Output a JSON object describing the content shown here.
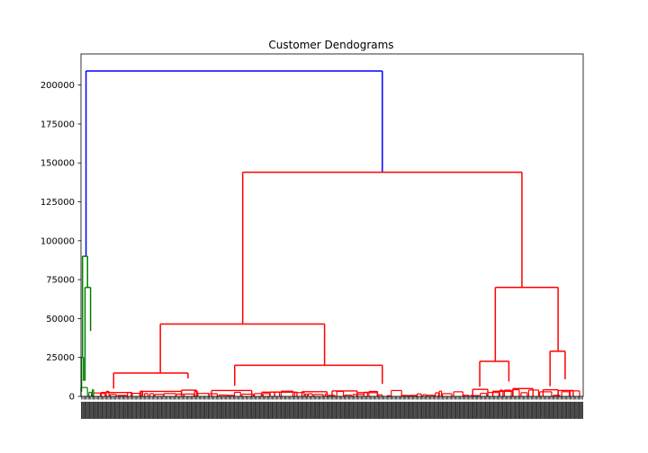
{
  "chart_data": {
    "type": "dendrogram",
    "title": "Customer Dendograms",
    "xlabel": "",
    "ylabel": "",
    "ylim": [
      0,
      220000
    ],
    "yticks": [
      0,
      25000,
      50000,
      75000,
      100000,
      125000,
      150000,
      175000,
      200000
    ],
    "ytick_labels": [
      "0",
      "25000",
      "50000",
      "75000",
      "100000",
      "125000",
      "150000",
      "175000",
      "200000"
    ],
    "grid": false,
    "legend": "none",
    "leaf_count": 440,
    "colors": {
      "root": "#0000ff",
      "cluster_1": "#008000",
      "cluster_2": "#ff0000"
    },
    "merges": [
      {
        "name": "root",
        "color": "root",
        "left": [
          0.01,
          90000
        ],
        "right": [
          0.6,
          144000
        ],
        "height": 209000
      },
      {
        "name": "red-main",
        "color": "cluster_2",
        "left": [
          0.322,
          46500
        ],
        "right": [
          0.878,
          70000
        ],
        "height": 144000
      },
      {
        "name": "red-left",
        "color": "cluster_2",
        "left": [
          0.158,
          15000
        ],
        "right": [
          0.485,
          20000
        ],
        "height": 46500
      },
      {
        "name": "red-right",
        "color": "cluster_2",
        "left": [
          0.825,
          22500
        ],
        "right": [
          0.95,
          29000
        ],
        "height": 70000
      },
      {
        "name": "red-left-a",
        "color": "cluster_2",
        "left": [
          0.065,
          5000
        ],
        "right": [
          0.213,
          11500
        ],
        "height": 15000
      },
      {
        "name": "red-left-b",
        "color": "cluster_2",
        "left": [
          0.306,
          6800
        ],
        "right": [
          0.6,
          8000
        ],
        "height": 20000
      },
      {
        "name": "red-right-a",
        "color": "cluster_2",
        "left": [
          0.794,
          6200
        ],
        "right": [
          0.852,
          9500
        ],
        "height": 22500
      },
      {
        "name": "red-right-b",
        "color": "cluster_2",
        "left": [
          0.934,
          6500
        ],
        "right": [
          0.964,
          11000
        ],
        "height": 29000
      },
      {
        "name": "green-top",
        "color": "cluster_1",
        "left": [
          0.003,
          25000
        ],
        "right": [
          0.013,
          70000
        ],
        "height": 90000
      },
      {
        "name": "green-mid",
        "color": "cluster_1",
        "left": [
          0.008,
          10000
        ],
        "right": [
          0.019,
          42000
        ],
        "height": 70000
      },
      {
        "name": "green-low",
        "color": "cluster_1",
        "left": [
          0.001,
          3000
        ],
        "right": [
          0.005,
          10000
        ],
        "height": 25000
      }
    ]
  }
}
